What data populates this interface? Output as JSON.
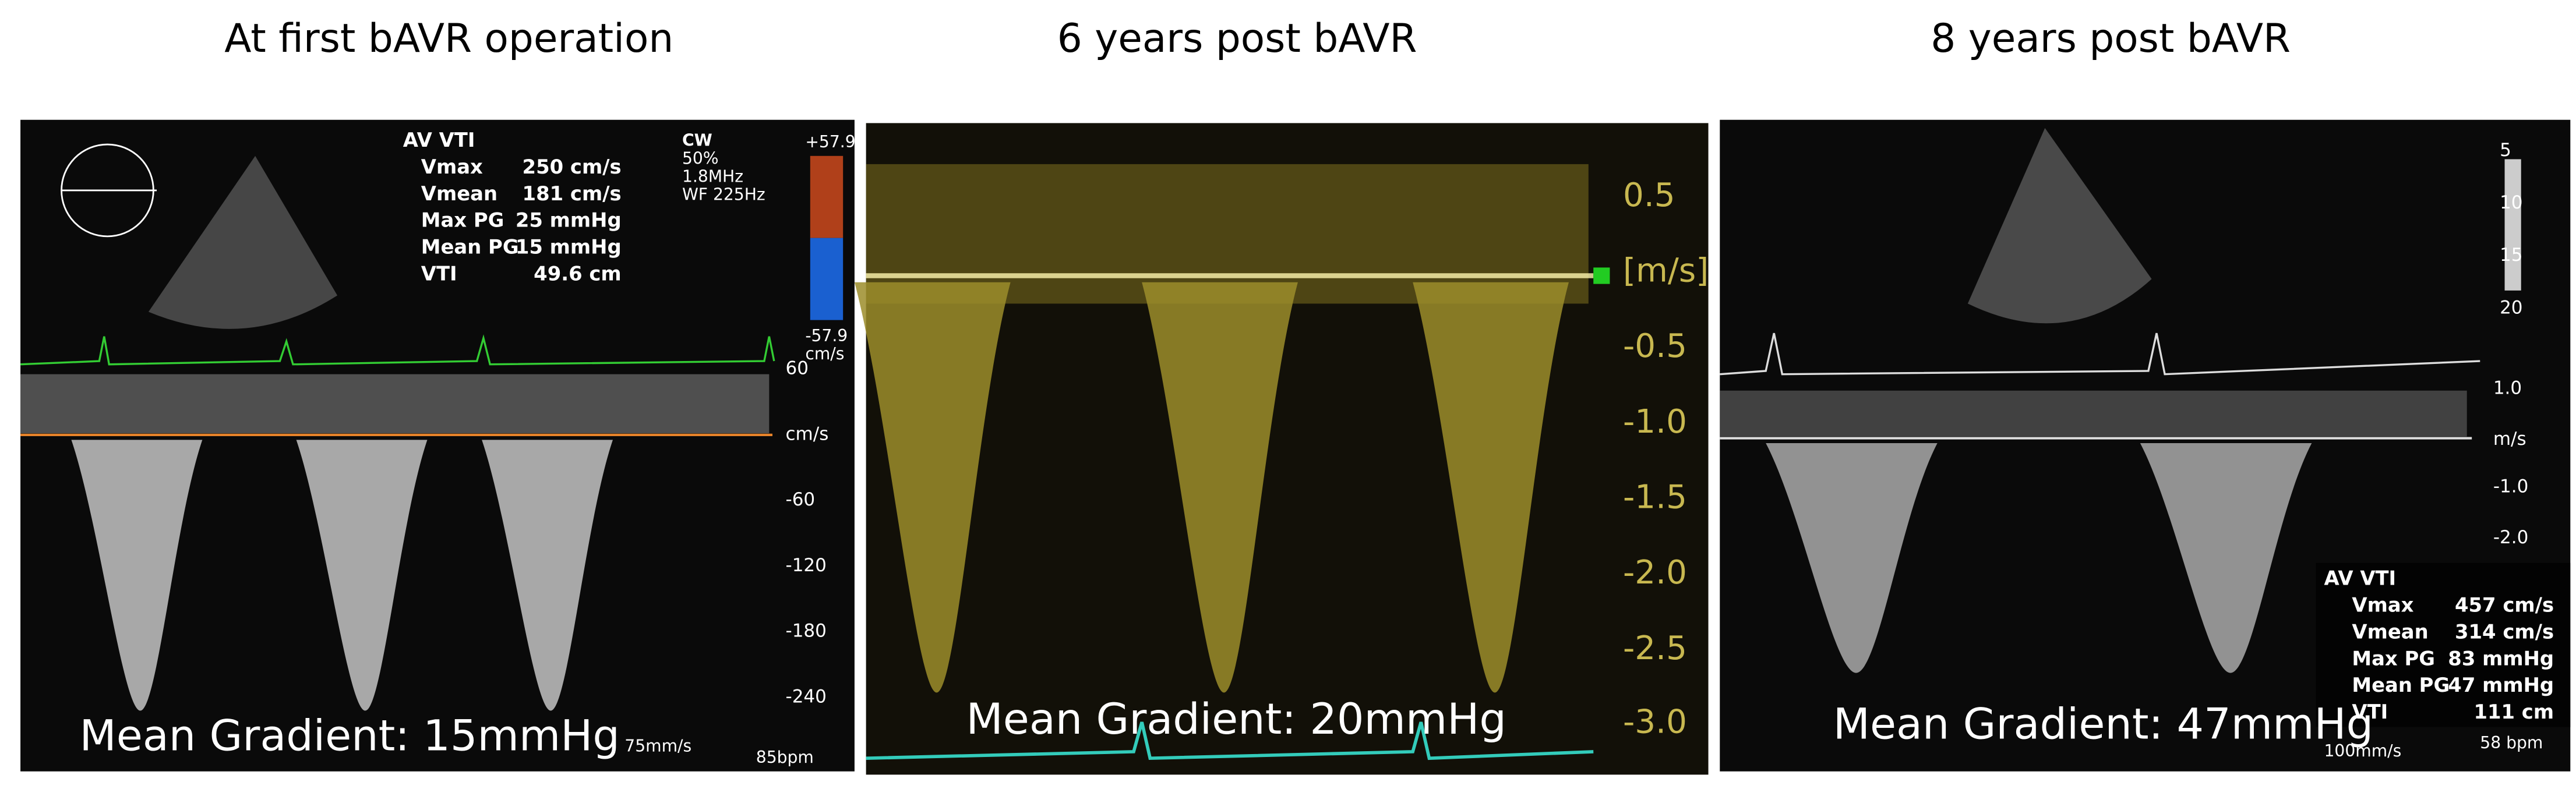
{
  "panels": [
    {
      "title": "At  first bAVR operation",
      "caption": "Mean Gradient: 15mmHg",
      "measurements": {
        "heading": "AV VTI",
        "rows": [
          [
            "Vmax",
            "250 cm/s"
          ],
          [
            "Vmean",
            "181 cm/s"
          ],
          [
            "Max PG",
            "25 mmHg"
          ],
          [
            "Mean PG",
            "15 mmHg"
          ],
          [
            "VTI",
            "49.6 cm"
          ]
        ]
      },
      "settings": [
        "CW",
        "50%",
        "1.8MHz",
        "WF 225Hz"
      ],
      "color_scale": [
        "+57.9",
        "-57.9",
        "cm/s"
      ],
      "scale_labels": [
        "60",
        "cm/s",
        "-60",
        "-120",
        "-180",
        "-240"
      ],
      "footer": [
        "75mm/s",
        "85bpm"
      ]
    },
    {
      "title": "6 years post bAVR",
      "caption": "Mean Gradient: 20mmHg",
      "scale_labels": [
        "0.5",
        "[m/s]",
        "-0.5",
        "-1.0",
        "-1.5",
        "-2.0",
        "-2.5",
        "-3.0"
      ]
    },
    {
      "title": "8 years post bAVR",
      "caption": "Mean Gradient: 47mmHg",
      "measurements": {
        "heading": "AV VTI",
        "rows": [
          [
            "Vmax",
            "457 cm/s"
          ],
          [
            "Vmean",
            "314 cm/s"
          ],
          [
            "Max PG",
            "83 mmHg"
          ],
          [
            "Mean PG",
            "47 mmHg"
          ],
          [
            "VTI",
            "111 cm"
          ]
        ]
      },
      "scale_labels": [
        "1.0",
        "m/s",
        "-1.0",
        "-2.0"
      ],
      "depth_labels": [
        "5",
        "10",
        "15",
        "20"
      ],
      "footer": [
        "100mm/s",
        "58 bpm"
      ]
    }
  ]
}
